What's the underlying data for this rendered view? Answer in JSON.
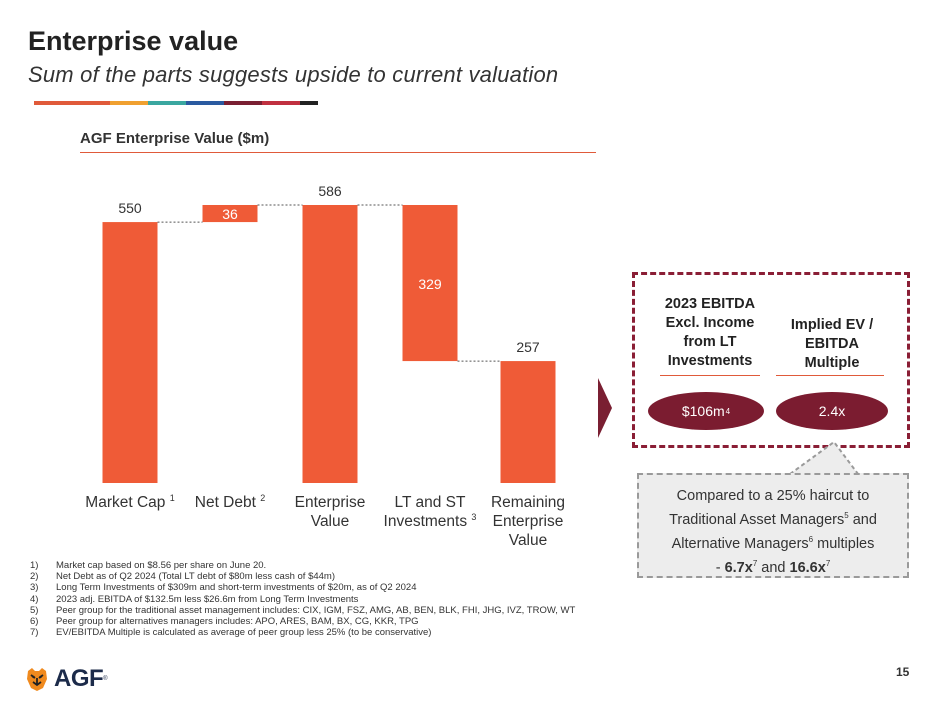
{
  "header": {
    "title": "Enterprise value",
    "subtitle": "Sum of the parts suggests upside to current valuation",
    "stripe_colors": [
      "#e05a3a",
      "#e05a3a",
      "#f0a030",
      "#3aa7a0",
      "#2a5aa0",
      "#7a1f32",
      "#c03040",
      "#222222"
    ]
  },
  "chart_data": {
    "type": "bar",
    "subtype": "waterfall",
    "title": "AGF Enterprise Value ($m)",
    "categories": [
      "Market Cap",
      "Net Debt",
      "Enterprise Value",
      "LT and ST Investments",
      "Remaining Enterprise Value"
    ],
    "category_lines": [
      [
        "Market Cap 1"
      ],
      [
        "Net Debt 2"
      ],
      [
        "Enterprise",
        "Value"
      ],
      [
        "LT and ST",
        "Investments 3"
      ],
      [
        "Remaining",
        "Enterprise",
        "Value"
      ]
    ],
    "label_superscripts": [
      "1",
      "2",
      "",
      "3",
      ""
    ],
    "values": [
      550,
      36,
      586,
      -329,
      257
    ],
    "bar_kind": [
      "total",
      "delta",
      "total",
      "delta",
      "total"
    ],
    "data_labels": [
      "550",
      "36",
      "586",
      "329",
      "257"
    ],
    "ylim": [
      0,
      586
    ],
    "bar_color": "#ef5b37",
    "grid": false,
    "legend": "none"
  },
  "footnotes": [
    {
      "num": "1)",
      "text": "Market cap based on $8.56 per share on June 20."
    },
    {
      "num": "2)",
      "text": "Net Debt as of Q2 2024 (Total LT debt of $80m less cash of $44m)"
    },
    {
      "num": "3)",
      "text": "Long Term Investments of $309m and short-term investments of $20m, as of Q2 2024"
    },
    {
      "num": "4)",
      "text": "2023 adj. EBITDA of $132.5m less $26.6m from Long Term Investments"
    },
    {
      "num": "5)",
      "text": "Peer group for the traditional asset management includes: CIX, IGM, FSZ, AMG, AB, BEN, BLK, FHI, JHG, IVZ, TROW, WT"
    },
    {
      "num": "6)",
      "text": "Peer group for alternatives managers includes: APO, ARES, BAM, BX, CG, KKR, TPG"
    },
    {
      "num": "7)",
      "text": "EV/EBITDA Multiple is calculated as average of peer group less 25% (to be conservative)"
    }
  ],
  "metrics": {
    "ebitda_heading": "2023 EBITDA Excl. Income from LT Investments",
    "ebitda_value": "$106m",
    "ebitda_sup": "4",
    "multiple_heading": "Implied EV / EBITDA Multiple",
    "multiple_value": "2.4x",
    "accent_color": "#7b1c30"
  },
  "note": {
    "line1": "Compared to a 25% haircut to",
    "line2_a": "Traditional Asset Managers",
    "line2_sup": "5",
    "line2_b": " and",
    "line3_a": "Alternative Managers",
    "line3_sup": "6",
    "line3_b": " multiples",
    "line4_a": "- ",
    "mult1": "6.7x",
    "mult1_sup": "7",
    "line4_and": " and ",
    "mult2": "16.6x",
    "mult2_sup": "7"
  },
  "footer": {
    "logo_text": "AGF",
    "trademark": "®",
    "page_number": "15"
  }
}
